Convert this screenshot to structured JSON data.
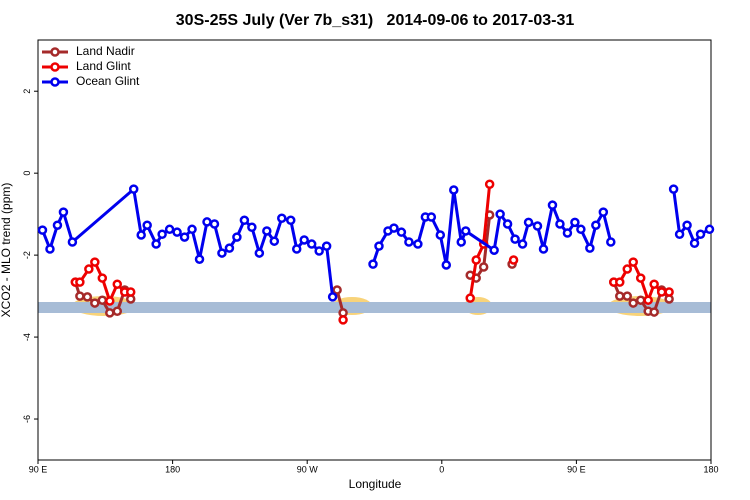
{
  "chart_data": {
    "type": "line",
    "title": "30S-25S July (Ver 7b_s31)   2014-09-06 to 2017-03-31",
    "x_label": "Longitude",
    "y_label": "XCO2 - MLO trend (ppm)",
    "xlim": [
      90,
      540
    ],
    "ylim": [
      -7,
      3.25
    ],
    "xticks": [
      {
        "value": 90,
        "label": "90 E"
      },
      180,
      {
        "value": 270,
        "label": "90 W"
      },
      {
        "value": 360,
        "label": "0"
      },
      {
        "value": 450,
        "label": "90 E"
      },
      {
        "value": 540,
        "label": "180"
      }
    ],
    "yticks": [
      -6,
      -4,
      -2,
      0,
      2
    ],
    "legend": "topleft",
    "series": [
      {
        "name": "Land Nadir",
        "color": "#a52a2a",
        "x": [
          115,
          118,
          123,
          128,
          133,
          138,
          143,
          148,
          152,
          null,
          290,
          294,
          null,
          379,
          383,
          388,
          392,
          null,
          407,
          null,
          475,
          479,
          484,
          488,
          493,
          498,
          502,
          507,
          512
        ],
        "values": [
          -2.66,
          -3.0,
          -3.02,
          -3.17,
          -3.1,
          -3.41,
          -3.37,
          -2.85,
          -3.07,
          null,
          -2.85,
          -3.41,
          null,
          -2.49,
          -2.56,
          -2.29,
          -1.02,
          null,
          -2.22,
          null,
          -2.66,
          -3.0,
          -3.0,
          -3.17,
          -3.1,
          -3.37,
          -3.39,
          -2.85,
          -3.07
        ]
      },
      {
        "name": "Land Glint",
        "color": "#ee0000",
        "x": [
          115,
          118,
          124,
          128,
          133,
          138,
          143,
          148,
          152,
          null,
          294,
          null,
          379,
          383,
          388,
          392,
          null,
          408,
          null,
          475,
          479,
          484,
          488,
          493,
          498,
          502,
          507,
          512
        ],
        "values": [
          -2.66,
          -2.66,
          -2.34,
          -2.17,
          -2.56,
          -3.12,
          -2.71,
          -2.9,
          -2.9,
          null,
          -3.58,
          null,
          -3.05,
          -2.12,
          -1.73,
          -0.27,
          null,
          -2.12,
          null,
          -2.66,
          -2.66,
          -2.34,
          -2.17,
          -2.56,
          -3.1,
          -2.71,
          -2.9,
          -2.9
        ]
      },
      {
        "name": "Ocean Glint",
        "color": "#0000ee",
        "x": [
          93,
          98,
          103,
          107,
          113,
          154,
          159,
          163,
          169,
          173,
          178,
          183,
          188,
          193,
          198,
          203,
          208,
          213,
          218,
          223,
          228,
          233,
          238,
          243,
          248,
          253,
          259,
          263,
          268,
          273,
          278,
          283,
          287,
          null,
          314,
          318,
          324,
          328,
          333,
          338,
          344,
          349,
          353,
          359,
          363,
          368,
          373,
          376,
          395,
          399,
          404,
          409,
          414,
          418,
          424,
          428,
          434,
          439,
          444,
          449,
          453,
          459,
          463,
          468,
          473,
          null,
          515,
          519,
          524,
          529,
          533,
          539
        ],
        "values": [
          -1.39,
          -1.85,
          -1.27,
          -0.95,
          -1.68,
          -0.39,
          -1.51,
          -1.27,
          -1.73,
          -1.49,
          -1.37,
          -1.44,
          -1.56,
          -1.37,
          -2.1,
          -1.19,
          -1.24,
          -1.95,
          -1.83,
          -1.56,
          -1.15,
          -1.32,
          -1.95,
          -1.41,
          -1.66,
          -1.1,
          -1.15,
          -1.85,
          -1.63,
          -1.73,
          -1.9,
          -1.78,
          -3.02,
          null,
          -2.22,
          -1.78,
          -1.41,
          -1.34,
          -1.44,
          -1.68,
          -1.73,
          -1.07,
          -1.07,
          -1.51,
          -2.24,
          -0.41,
          -1.68,
          -1.41,
          -1.88,
          -1.0,
          -1.24,
          -1.61,
          -1.73,
          -1.2,
          -1.29,
          -1.85,
          -0.78,
          -1.24,
          -1.46,
          -1.2,
          -1.37,
          -1.83,
          -1.27,
          -0.95,
          -1.68,
          null,
          -0.39,
          -1.49,
          -1.27,
          -1.71,
          -1.49,
          -1.37
        ]
      }
    ]
  }
}
